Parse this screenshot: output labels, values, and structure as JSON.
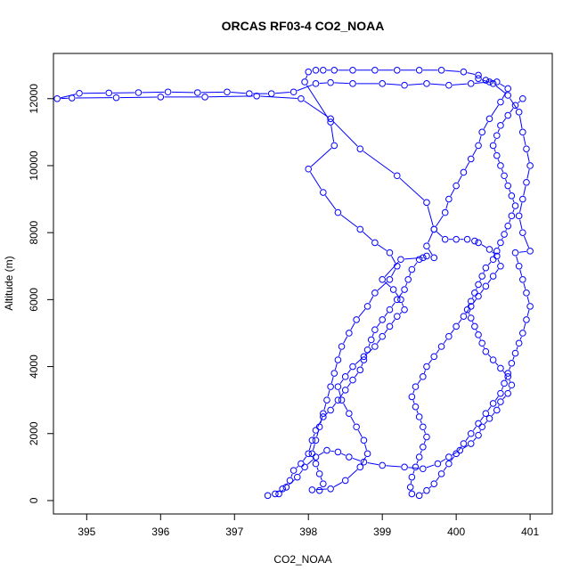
{
  "chart_data": {
    "type": "scatter",
    "title": "ORCAS RF03-4 CO2_NOAA",
    "xlabel": "CO2_NOAA",
    "ylabel": "Altitude (m)",
    "xlim": [
      394.55,
      401.3
    ],
    "ylim": [
      -400,
      13350
    ],
    "xticks": [
      395,
      396,
      397,
      398,
      399,
      400,
      401
    ],
    "yticks": [
      0,
      2000,
      4000,
      6000,
      8000,
      10000,
      12000
    ],
    "xtick_labels": [
      "395",
      "396",
      "397",
      "398",
      "399",
      "400",
      "401"
    ],
    "ytick_labels": [
      "0",
      "2000",
      "4000",
      "6000",
      "8000",
      "10000",
      "12000"
    ],
    "grid": false,
    "legend": "none",
    "color": "#0000ff",
    "series": [
      {
        "values": [
          [
            397.45,
            150
          ],
          [
            397.55,
            200
          ],
          [
            397.65,
            350
          ],
          [
            397.75,
            600
          ],
          [
            397.8,
            900
          ],
          [
            397.9,
            1100
          ],
          [
            398.0,
            1400
          ],
          [
            398.05,
            1800
          ],
          [
            398.1,
            2100
          ],
          [
            398.2,
            2500
          ],
          [
            398.3,
            2700
          ],
          [
            398.4,
            3000
          ],
          [
            398.5,
            3300
          ],
          [
            398.6,
            3600
          ],
          [
            398.7,
            3900
          ],
          [
            398.75,
            4200
          ],
          [
            398.8,
            4500
          ],
          [
            398.85,
            4800
          ],
          [
            398.9,
            5100
          ],
          [
            399.0,
            5400
          ],
          [
            399.1,
            5700
          ],
          [
            399.2,
            6000
          ],
          [
            399.3,
            6300
          ],
          [
            399.35,
            6600
          ],
          [
            399.4,
            6900
          ],
          [
            399.5,
            7200
          ],
          [
            399.6,
            7300
          ],
          [
            399.7,
            7250
          ],
          [
            399.6,
            7600
          ],
          [
            399.7,
            8100
          ],
          [
            399.85,
            8600
          ],
          [
            399.9,
            9000
          ],
          [
            400.0,
            9400
          ],
          [
            400.1,
            9800
          ],
          [
            400.2,
            10200
          ],
          [
            400.3,
            10600
          ],
          [
            400.35,
            11000
          ],
          [
            400.45,
            11400
          ],
          [
            400.6,
            11900
          ],
          [
            400.7,
            12300
          ],
          [
            400.55,
            12500
          ],
          [
            400.4,
            12550
          ]
        ]
      },
      {
        "values": [
          [
            400.45,
            12500
          ],
          [
            400.2,
            12450
          ],
          [
            399.9,
            12400
          ],
          [
            399.6,
            12450
          ],
          [
            399.3,
            12400
          ],
          [
            399.0,
            12450
          ],
          [
            398.6,
            12450
          ],
          [
            398.3,
            12480
          ],
          [
            398.1,
            12450
          ],
          [
            397.8,
            12200
          ],
          [
            397.5,
            12150
          ],
          [
            397.2,
            12150
          ],
          [
            396.9,
            12200
          ],
          [
            396.5,
            12180
          ],
          [
            396.1,
            12200
          ],
          [
            395.7,
            12180
          ],
          [
            395.3,
            12170
          ],
          [
            394.9,
            12160
          ],
          [
            394.6,
            12000
          ],
          [
            394.8,
            12020
          ],
          [
            395.4,
            12030
          ],
          [
            396.0,
            12050
          ],
          [
            396.6,
            12050
          ],
          [
            397.3,
            12080
          ],
          [
            397.9,
            12000
          ],
          [
            398.3,
            11400
          ],
          [
            398.7,
            10500
          ],
          [
            399.2,
            9700
          ],
          [
            399.6,
            8900
          ],
          [
            399.7,
            8100
          ],
          [
            399.85,
            7800
          ],
          [
            400.0,
            7800
          ],
          [
            400.15,
            7800
          ],
          [
            400.25,
            7750
          ]
        ]
      },
      {
        "values": [
          [
            400.3,
            7700
          ],
          [
            400.45,
            7500
          ],
          [
            400.55,
            7300
          ],
          [
            400.6,
            7000
          ],
          [
            400.5,
            6700
          ],
          [
            400.4,
            6400
          ],
          [
            400.3,
            6100
          ],
          [
            400.2,
            5800
          ],
          [
            400.1,
            5500
          ],
          [
            400.0,
            5200
          ],
          [
            399.9,
            4900
          ],
          [
            399.8,
            4600
          ],
          [
            399.7,
            4300
          ],
          [
            399.6,
            4000
          ],
          [
            399.55,
            3700
          ],
          [
            399.45,
            3400
          ],
          [
            399.4,
            3100
          ],
          [
            399.45,
            2800
          ],
          [
            399.5,
            2500
          ],
          [
            399.55,
            2200
          ],
          [
            399.6,
            1900
          ],
          [
            399.55,
            1600
          ],
          [
            399.5,
            1300
          ],
          [
            399.45,
            1000
          ],
          [
            399.4,
            700
          ],
          [
            399.38,
            400
          ],
          [
            399.4,
            200
          ],
          [
            399.5,
            150
          ],
          [
            399.6,
            300
          ],
          [
            399.7,
            500
          ],
          [
            399.8,
            800
          ],
          [
            399.9,
            1100
          ],
          [
            400.0,
            1400
          ],
          [
            400.1,
            1700
          ],
          [
            400.2,
            2000
          ],
          [
            400.3,
            2300
          ],
          [
            400.4,
            2600
          ],
          [
            400.5,
            2900
          ],
          [
            400.6,
            3200
          ],
          [
            400.65,
            3500
          ],
          [
            400.7,
            3800
          ],
          [
            400.75,
            4100
          ],
          [
            400.8,
            4400
          ],
          [
            400.85,
            4700
          ],
          [
            400.9,
            5000
          ],
          [
            400.95,
            5400
          ],
          [
            401.0,
            5800
          ],
          [
            400.95,
            6200
          ],
          [
            400.9,
            6600
          ],
          [
            400.85,
            7000
          ],
          [
            400.8,
            7400
          ],
          [
            401.0,
            7450
          ],
          [
            400.9,
            8000
          ],
          [
            400.85,
            8500
          ],
          [
            400.9,
            9000
          ],
          [
            400.95,
            9500
          ],
          [
            401.0,
            10000
          ],
          [
            400.95,
            10500
          ],
          [
            400.9,
            11000
          ],
          [
            400.85,
            11600
          ],
          [
            400.7,
            12100
          ],
          [
            400.5,
            12450
          ],
          [
            400.3,
            12600
          ]
        ]
      },
      {
        "values": [
          [
            400.3,
            12700
          ],
          [
            400.1,
            12800
          ],
          [
            399.8,
            12850
          ],
          [
            399.5,
            12850
          ],
          [
            399.2,
            12850
          ],
          [
            398.9,
            12850
          ],
          [
            398.6,
            12850
          ],
          [
            398.35,
            12850
          ],
          [
            398.2,
            12850
          ],
          [
            398.1,
            12850
          ],
          [
            398.0,
            12800
          ],
          [
            397.95,
            12500
          ],
          [
            398.3,
            11300
          ],
          [
            398.35,
            10600
          ],
          [
            398.0,
            9900
          ],
          [
            398.2,
            9200
          ],
          [
            398.4,
            8600
          ],
          [
            398.7,
            8100
          ],
          [
            398.9,
            7700
          ],
          [
            399.1,
            7400
          ],
          [
            399.2,
            7000
          ],
          [
            399.1,
            6600
          ],
          [
            398.9,
            6200
          ],
          [
            398.8,
            5800
          ],
          [
            398.65,
            5400
          ],
          [
            398.55,
            5000
          ],
          [
            398.45,
            4600
          ],
          [
            398.4,
            4200
          ],
          [
            398.35,
            3800
          ],
          [
            398.3,
            3400
          ],
          [
            398.25,
            3000
          ],
          [
            398.2,
            2600
          ],
          [
            398.15,
            2200
          ],
          [
            398.1,
            1800
          ],
          [
            398.05,
            1400
          ],
          [
            398.1,
            1100
          ],
          [
            398.15,
            800
          ],
          [
            398.2,
            500
          ],
          [
            398.15,
            300
          ],
          [
            398.05,
            320
          ],
          [
            398.3,
            350
          ],
          [
            398.5,
            600
          ],
          [
            398.7,
            1000
          ],
          [
            398.8,
            1400
          ],
          [
            398.75,
            1800
          ],
          [
            398.65,
            2200
          ],
          [
            398.55,
            2600
          ],
          [
            398.45,
            3000
          ],
          [
            398.4,
            3400
          ],
          [
            398.5,
            3700
          ],
          [
            398.6,
            4000
          ],
          [
            398.75,
            4300
          ],
          [
            398.9,
            4600
          ],
          [
            399.0,
            4900
          ],
          [
            399.1,
            5200
          ],
          [
            399.2,
            5500
          ],
          [
            399.3,
            5700
          ],
          [
            399.25,
            6000
          ],
          [
            399.15,
            6300
          ],
          [
            399.0,
            6600
          ],
          [
            399.25,
            7200
          ],
          [
            399.55,
            7250
          ]
        ]
      },
      {
        "values": [
          [
            397.6,
            200
          ],
          [
            397.7,
            400
          ],
          [
            397.85,
            700
          ],
          [
            397.95,
            1000
          ],
          [
            398.1,
            1300
          ],
          [
            398.25,
            1500
          ],
          [
            398.4,
            1450
          ],
          [
            398.55,
            1300
          ],
          [
            398.75,
            1150
          ],
          [
            399.0,
            1050
          ],
          [
            399.3,
            1000
          ],
          [
            399.55,
            950
          ],
          [
            399.75,
            1100
          ],
          [
            399.9,
            1300
          ],
          [
            400.05,
            1500
          ],
          [
            400.2,
            1700
          ],
          [
            400.3,
            1950
          ],
          [
            400.35,
            2200
          ],
          [
            400.45,
            2450
          ],
          [
            400.55,
            2700
          ],
          [
            400.6,
            2950
          ],
          [
            400.7,
            3200
          ],
          [
            400.75,
            3450
          ],
          [
            400.7,
            3700
          ],
          [
            400.6,
            3950
          ],
          [
            400.5,
            4200
          ],
          [
            400.4,
            4450
          ],
          [
            400.35,
            4700
          ],
          [
            400.3,
            4950
          ],
          [
            400.25,
            5200
          ],
          [
            400.2,
            5450
          ],
          [
            400.15,
            5700
          ],
          [
            400.2,
            5950
          ],
          [
            400.25,
            6200
          ],
          [
            400.3,
            6450
          ],
          [
            400.35,
            6700
          ],
          [
            400.4,
            6950
          ],
          [
            400.5,
            7200
          ],
          [
            400.55,
            7450
          ],
          [
            400.6,
            7700
          ],
          [
            400.65,
            7950
          ],
          [
            400.7,
            8200
          ],
          [
            400.75,
            8500
          ],
          [
            400.8,
            8800
          ],
          [
            400.75,
            9100
          ],
          [
            400.7,
            9400
          ],
          [
            400.65,
            9700
          ],
          [
            400.6,
            10000
          ],
          [
            400.55,
            10300
          ],
          [
            400.5,
            10600
          ],
          [
            400.55,
            10900
          ],
          [
            400.6,
            11200
          ],
          [
            400.7,
            11500
          ],
          [
            400.8,
            11800
          ],
          [
            400.9,
            12000
          ]
        ]
      }
    ]
  }
}
